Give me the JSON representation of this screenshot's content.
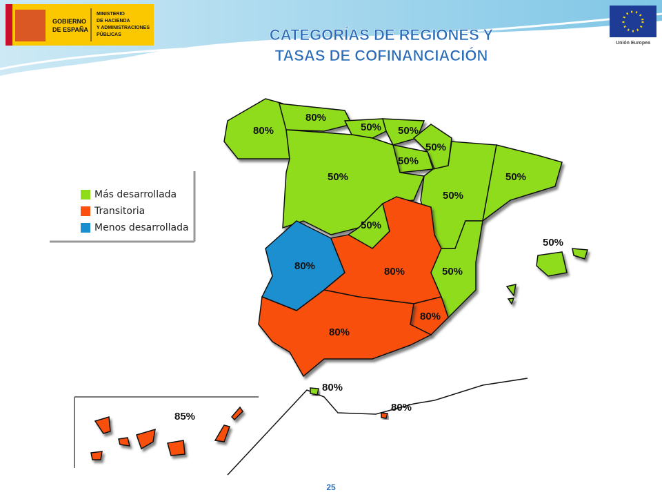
{
  "header": {
    "government": [
      "GOBIERNO",
      "DE ESPAÑA"
    ],
    "ministry": [
      "MINISTERIO",
      "DE HACIENDA",
      "Y ADMINISTRACIONES",
      "PÚBLICAS"
    ],
    "eu": "Unión Europea"
  },
  "title": [
    "CATEGORÍAS DE REGIONES Y",
    "TASAS DE COFINANCIACIÓN"
  ],
  "legend": [
    {
      "label": "Más desarrollada",
      "color": "#8fdc1a"
    },
    {
      "label": "Transitoria",
      "color": "#f9500f"
    },
    {
      "label": "Menos desarrollada",
      "color": "#1a8fd0"
    }
  ],
  "regions": [
    {
      "label": "80%",
      "color": "#8fdc1a"
    },
    {
      "label": "80%",
      "color": "#8fdc1a"
    },
    {
      "label": "50%",
      "color": "#8fdc1a"
    },
    {
      "label": "50%",
      "color": "#8fdc1a"
    },
    {
      "label": "50%",
      "color": "#8fdc1a"
    },
    {
      "label": "50%",
      "color": "#8fdc1a"
    },
    {
      "label": "50%",
      "color": "#8fdc1a"
    },
    {
      "label": "50%",
      "color": "#8fdc1a"
    },
    {
      "label": "50%",
      "color": "#8fdc1a"
    },
    {
      "label": "50%",
      "color": "#8fdc1a"
    },
    {
      "label": "80%",
      "color": "#1a8fd0"
    },
    {
      "label": "80%",
      "color": "#f9500f"
    },
    {
      "label": "50%",
      "color": "#8fdc1a"
    },
    {
      "label": "80%",
      "color": "#f9500f"
    },
    {
      "label": "80%",
      "color": "#f9500f"
    },
    {
      "label": "50%",
      "color": "#8fdc1a"
    },
    {
      "label": "80%",
      "color": "#8fdc1a"
    },
    {
      "label": "80%",
      "color": "#f9500f"
    },
    {
      "label": "85%",
      "color": "#f9500f"
    }
  ],
  "page_number": "25"
}
